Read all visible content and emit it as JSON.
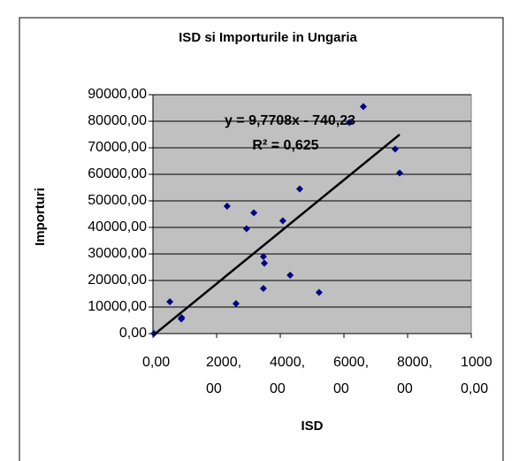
{
  "chart_data": {
    "type": "scatter",
    "title": "ISD si Importurile in Ungaria",
    "xlabel": "ISD",
    "ylabel": "Importuri",
    "x": [
      30,
      530,
      890,
      900,
      2610,
      2330,
      3170,
      2940,
      3470,
      3470,
      3500,
      4080,
      4310,
      4610,
      5220,
      6170,
      6610,
      7610,
      7750
    ],
    "series": [
      {
        "name": "Importuri",
        "color": "#000080",
        "values": [
          0,
          12000,
          5500,
          6000,
          11300,
          48000,
          45500,
          39500,
          17000,
          29000,
          26500,
          42500,
          22000,
          54500,
          15500,
          79500,
          85500,
          69500,
          60500
        ]
      }
    ],
    "trendline": {
      "slope": 9.7708,
      "intercept": -740.23,
      "color": "#000000",
      "equation": "y = 9,7708x - 740,23",
      "r2": "R² = 0,625"
    },
    "xlim": [
      0,
      10000
    ],
    "xticks": [
      {
        "value": 0,
        "label": "0,00"
      },
      {
        "value": 2000,
        "label": "2000,00"
      },
      {
        "value": 4000,
        "label": "4000,00"
      },
      {
        "value": 6000,
        "label": "6000,00"
      },
      {
        "value": 8000,
        "label": "8000,00"
      },
      {
        "value": 10000,
        "label": "10000,00"
      }
    ],
    "ylim": [
      0,
      90000
    ],
    "yticks": [
      {
        "value": 0,
        "label": "0,00"
      },
      {
        "value": 10000,
        "label": "10000,00"
      },
      {
        "value": 20000,
        "label": "20000,00"
      },
      {
        "value": 30000,
        "label": "30000,00"
      },
      {
        "value": 40000,
        "label": "40000,00"
      },
      {
        "value": 50000,
        "label": "50000,00"
      },
      {
        "value": 60000,
        "label": "60000,00"
      },
      {
        "value": 70000,
        "label": "70000,00"
      },
      {
        "value": 80000,
        "label": "80000,00"
      },
      {
        "value": 90000,
        "label": "90000,00"
      }
    ],
    "grid": true
  }
}
